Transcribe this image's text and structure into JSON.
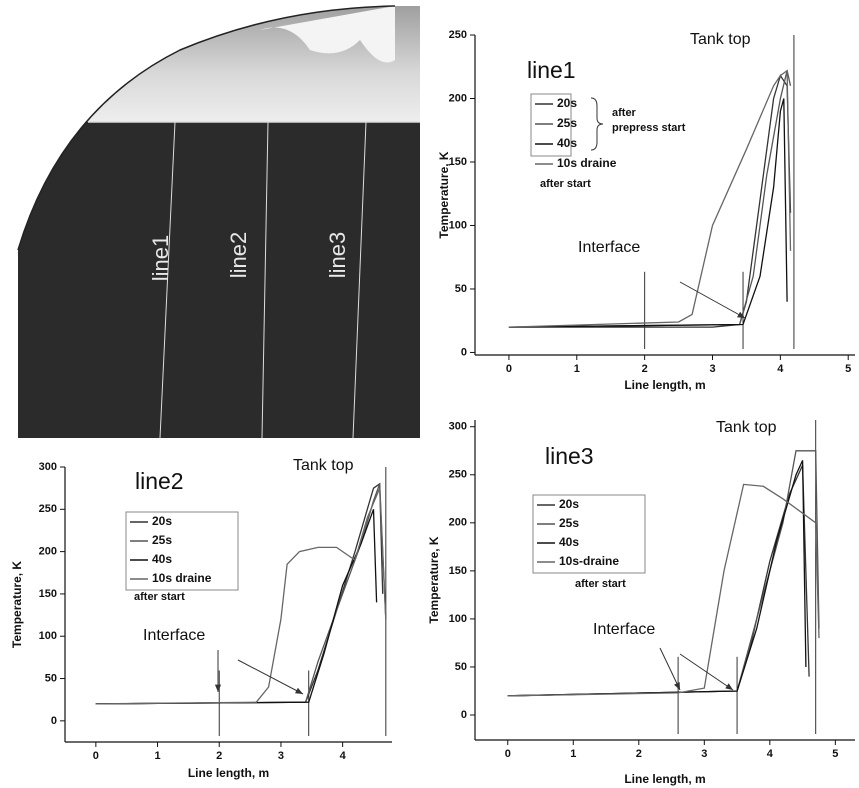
{
  "image": {
    "labels": [
      "line1",
      "line2",
      "line3"
    ]
  },
  "chart_data": [
    {
      "type": "line",
      "title": "line1",
      "xlabel": "Line length, m",
      "ylabel": "Temperature, K",
      "annotations": [
        "Tank top",
        "Interface"
      ],
      "legend_notes": [
        "after",
        "prepress start",
        "after start"
      ],
      "xlim": [
        -0.5,
        5.1
      ],
      "ylim": [
        -2,
        250
      ],
      "xticks": [
        0,
        1,
        2,
        3,
        4,
        5
      ],
      "yticks": [
        0,
        50,
        100,
        150,
        200,
        250
      ],
      "reference_lines": [
        2,
        3.45,
        4.2
      ],
      "series": [
        {
          "name": "20s",
          "color": "#333333",
          "x": [
            0,
            3.0,
            3.4,
            3.5,
            3.7,
            3.9,
            4.0,
            4.1,
            4.15
          ],
          "values": [
            20,
            20,
            22,
            40,
            120,
            200,
            218,
            210,
            110
          ]
        },
        {
          "name": "25s",
          "color": "#555555",
          "x": [
            0,
            3.4,
            3.6,
            3.8,
            4.0,
            4.1,
            4.15
          ],
          "values": [
            20,
            22,
            60,
            140,
            200,
            222,
            210
          ]
        },
        {
          "name": "40s",
          "color": "#111111",
          "x": [
            0,
            3.45,
            3.7,
            3.9,
            4.0,
            4.05,
            4.1
          ],
          "values": [
            20,
            22,
            60,
            130,
            190,
            200,
            40
          ]
        },
        {
          "name": "10s draine",
          "color": "#666666",
          "x": [
            0,
            2.5,
            2.7,
            3.0,
            3.5,
            3.9,
            4.0,
            4.1,
            4.15
          ],
          "values": [
            20,
            24,
            30,
            100,
            160,
            210,
            218,
            222,
            80
          ]
        }
      ]
    },
    {
      "type": "line",
      "title": "line2",
      "xlabel": "Line length, m",
      "ylabel": "Temperature, K",
      "annotations": [
        "Tank top",
        "Interface"
      ],
      "legend_notes": [
        "after start"
      ],
      "xlim": [
        -0.5,
        4.8
      ],
      "ylim": [
        -25,
        300
      ],
      "xticks": [
        0,
        1,
        2,
        3,
        4
      ],
      "yticks": [
        0,
        50,
        100,
        150,
        200,
        250,
        300
      ],
      "reference_lines": [
        2,
        3.45,
        4.7
      ],
      "series": [
        {
          "name": "20s",
          "color": "#333333",
          "x": [
            0,
            3.4,
            3.6,
            3.9,
            4.2,
            4.4,
            4.5,
            4.6,
            4.65
          ],
          "values": [
            20,
            22,
            60,
            130,
            200,
            250,
            275,
            280,
            150
          ]
        },
        {
          "name": "25s",
          "color": "#555555",
          "x": [
            0,
            3.4,
            3.6,
            4.0,
            4.3,
            4.5,
            4.6,
            4.7
          ],
          "values": [
            20,
            22,
            70,
            150,
            210,
            260,
            280,
            120
          ]
        },
        {
          "name": "40s",
          "color": "#111111",
          "x": [
            0,
            3.45,
            3.7,
            4.0,
            4.3,
            4.5,
            4.55
          ],
          "values": [
            20,
            22,
            80,
            160,
            210,
            250,
            140
          ]
        },
        {
          "name": "10s draine",
          "color": "#666666",
          "x": [
            0,
            2.6,
            2.8,
            3.0,
            3.1,
            3.3,
            3.6,
            3.9,
            4.2,
            4.4,
            4.6,
            4.7
          ],
          "values": [
            20,
            22,
            40,
            120,
            185,
            200,
            205,
            205,
            190,
            240,
            275,
            120
          ]
        }
      ]
    },
    {
      "type": "line",
      "title": "line3",
      "xlabel": "Line length, m",
      "ylabel": "Temperature, K",
      "annotations": [
        "Tank top",
        "Interface"
      ],
      "legend_notes": [
        "after start"
      ],
      "xlim": [
        -0.5,
        5.3
      ],
      "ylim": [
        -26,
        307
      ],
      "xticks": [
        0,
        1,
        2,
        3,
        4,
        5
      ],
      "yticks": [
        0,
        50,
        100,
        150,
        200,
        250,
        300
      ],
      "reference_lines": [
        2.6,
        3.5,
        4.7
      ],
      "series": [
        {
          "name": "20s",
          "color": "#333333",
          "x": [
            0,
            3.5,
            3.7,
            4.0,
            4.3,
            4.5,
            4.6
          ],
          "values": [
            20,
            25,
            70,
            160,
            230,
            260,
            40
          ]
        },
        {
          "name": "25s",
          "color": "#555555",
          "x": [
            0,
            3.5,
            3.8,
            4.2,
            4.4,
            4.7,
            4.75
          ],
          "values": [
            20,
            25,
            100,
            200,
            275,
            275,
            90
          ]
        },
        {
          "name": "40s",
          "color": "#111111",
          "x": [
            0,
            3.5,
            3.8,
            4.1,
            4.4,
            4.5,
            4.55
          ],
          "values": [
            20,
            25,
            90,
            180,
            250,
            265,
            50
          ]
        },
        {
          "name": "10s-draine",
          "color": "#666666",
          "x": [
            0,
            2.6,
            3.0,
            3.3,
            3.6,
            3.9,
            4.2,
            4.5,
            4.7,
            4.75
          ],
          "values": [
            20,
            23,
            28,
            150,
            240,
            238,
            225,
            210,
            200,
            80
          ]
        }
      ]
    }
  ]
}
